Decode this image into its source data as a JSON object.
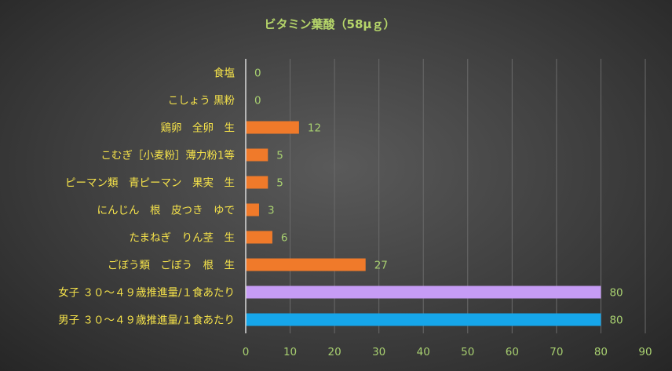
{
  "chart_data": {
    "type": "bar",
    "orientation": "horizontal",
    "title": "ビタミン葉酸（58μｇ）",
    "categories": [
      "食塩",
      "こしょう 黒粉",
      "鶏卵　全卵　生",
      "こむぎ［小麦粉］薄力粉1等",
      "ピーマン類　青ピーマン　果実　生",
      "にんじん　根　皮つき　ゆで",
      "たまねぎ　りん茎　生",
      "ごぼう類　ごぼう　根　生",
      "女子 ３０～４９歳推進量/１食あたり",
      "男子 ３０～４９歳推進量/１食あたり"
    ],
    "values": [
      0,
      0,
      12,
      5,
      5,
      3,
      6,
      27,
      80,
      80
    ],
    "bar_colors": [
      "#f07a2a",
      "#f07a2a",
      "#f07a2a",
      "#f07a2a",
      "#f07a2a",
      "#f07a2a",
      "#f07a2a",
      "#f07a2a",
      "#c69cf5",
      "#16a6ea"
    ],
    "xlim": [
      0,
      90
    ],
    "xticks": [
      0,
      10,
      20,
      30,
      40,
      50,
      60,
      70,
      80,
      90
    ],
    "grid": true,
    "legend": "none"
  }
}
